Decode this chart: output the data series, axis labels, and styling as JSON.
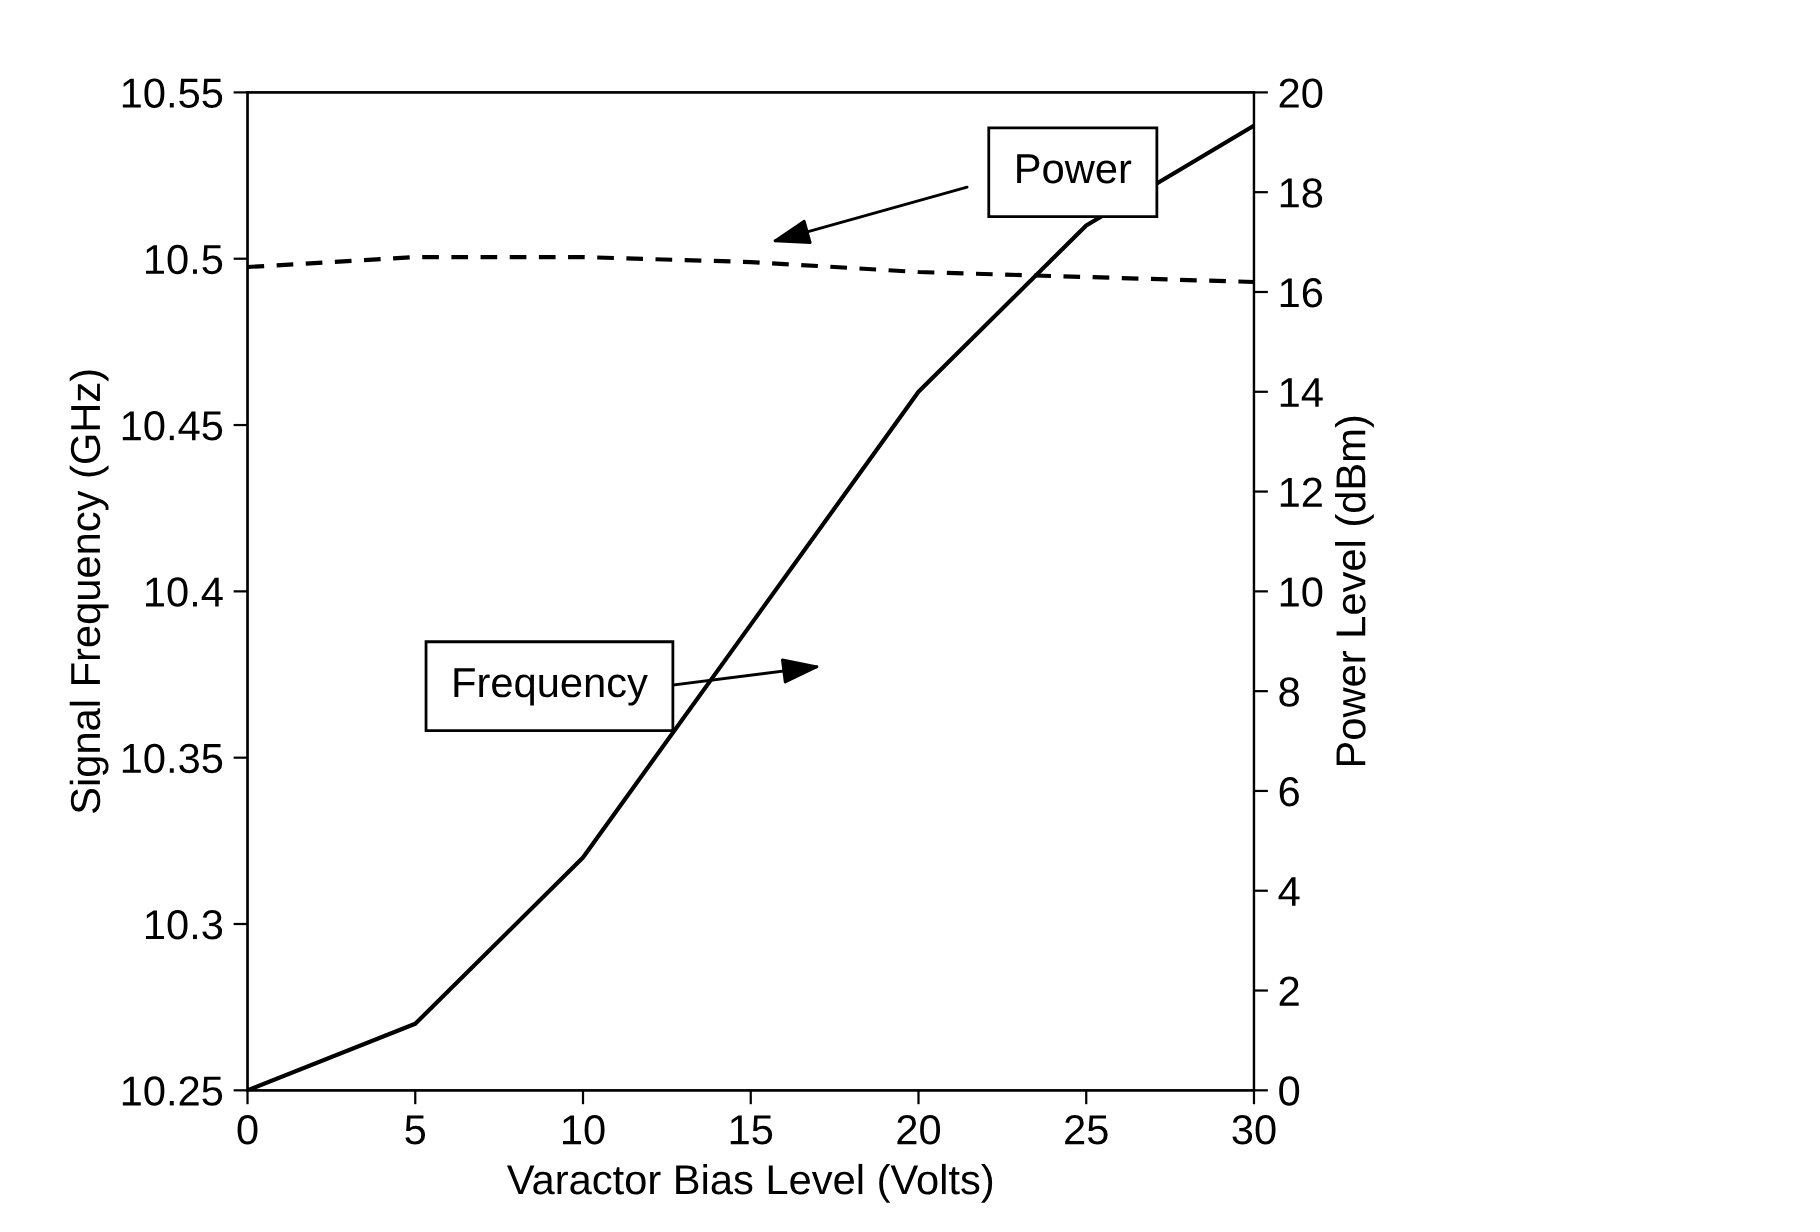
{
  "chart_data": {
    "type": "line",
    "xlabel": "Varactor Bias Level (Volts)",
    "ylabel": "Signal Frequency (GHz)",
    "y2label": "Power Level (dBm)",
    "x": [
      0,
      5,
      10,
      15,
      20,
      25,
      30
    ],
    "series": [
      {
        "color": "#000000",
        "line_style": "solid",
        "values": [
          10.25,
          10.27,
          10.32,
          10.39,
          10.46,
          10.51,
          10.54
        ]
      },
      {
        "color": "#000000",
        "line_style": "dashed",
        "axis": "y2",
        "values": [
          16.5,
          16.7,
          16.7,
          16.6,
          16.4,
          16.3,
          16.2
        ]
      }
    ],
    "annotations": [
      "Power",
      "Frequency"
    ],
    "xlim": [
      0,
      30
    ],
    "xticks": [
      0,
      5,
      10,
      15,
      20,
      25,
      30
    ],
    "ylim": [
      10.25,
      10.55
    ],
    "yticks": [
      {
        "value": 10.25,
        "label": "10.25"
      },
      {
        "value": 10.3,
        "label": "10.3"
      },
      {
        "value": 10.35,
        "label": "10.35"
      },
      {
        "value": 10.4,
        "label": "10.4"
      },
      {
        "value": 10.45,
        "label": "10.45"
      },
      {
        "value": 10.5,
        "label": "10.5"
      },
      {
        "value": 10.55,
        "label": "10.55"
      }
    ],
    "y2lim": [
      0,
      20
    ],
    "y2ticks": [
      0,
      2,
      4,
      6,
      8,
      10,
      12,
      14,
      16,
      18,
      20
    ],
    "grid": false,
    "legend": false
  }
}
